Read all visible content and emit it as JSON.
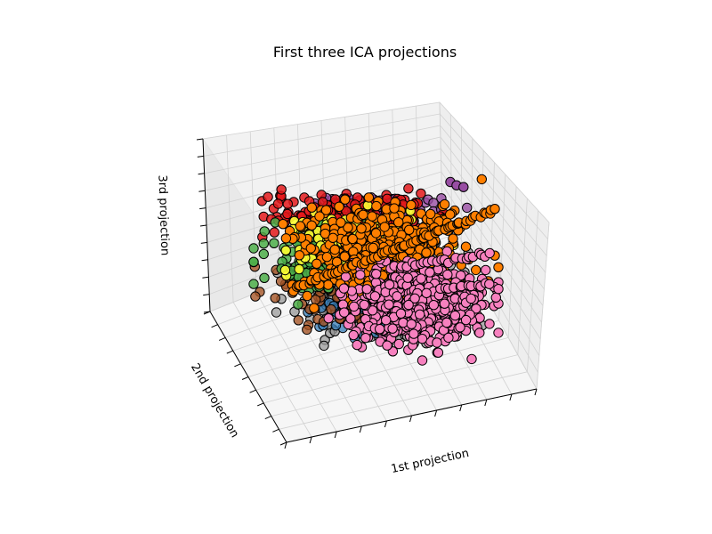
{
  "chart_data": {
    "type": "scatter",
    "projection": "3d",
    "title": "First three ICA projections",
    "xlabel": "1st projection",
    "ylabel": "2nd projection",
    "zlabel": "3rd projection",
    "grid": true,
    "tick_labels": "hidden",
    "colormap": "Set1",
    "colors": [
      "#e41a1c",
      "#377eb8",
      "#4daf4a",
      "#984ea3",
      "#ff7f00",
      "#ffff33",
      "#a65628",
      "#f781bf",
      "#999999"
    ],
    "marker_edge_color": "#000000",
    "ticks_per_axis": 10
  }
}
